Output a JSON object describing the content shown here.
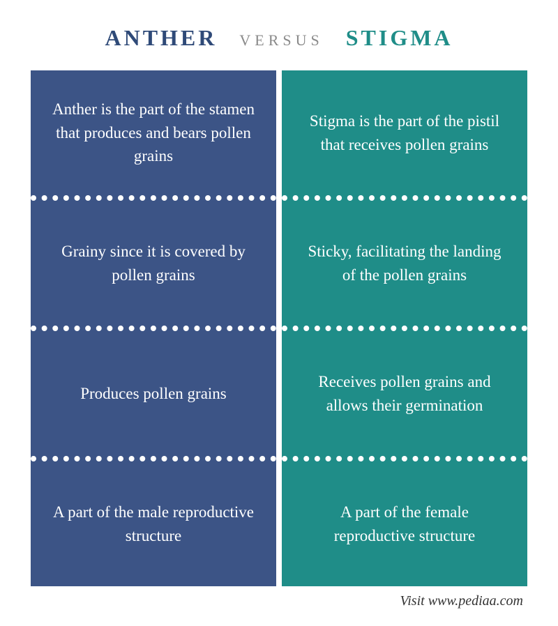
{
  "header": {
    "left_label": "ANTHER",
    "mid_label": "VERSUS",
    "right_label": "STIGMA",
    "left_color": "#2f4a78",
    "mid_color": "#8a8a8a",
    "right_color": "#1f8d88"
  },
  "columns": {
    "left": {
      "bg_color": "#3c5486",
      "cells": [
        "Anther is the part of the stamen that produces and bears pollen grains",
        "Grainy since it is covered by pollen grains",
        "Produces pollen grains",
        "A part of the male reproductive structure"
      ]
    },
    "right": {
      "bg_color": "#1f8d88",
      "cells": [
        "Stigma is the part of the pistil that receives pollen grains",
        "Sticky, facilitating the landing of the pollen grains",
        "Receives pollen grains and allows their germination",
        "A part of the female reproductive structure"
      ]
    }
  },
  "footer": {
    "text": "Visit www.pediaa.com"
  },
  "style": {
    "cell_font_size": 23,
    "cell_text_color": "#ffffff",
    "divider_color": "#ffffff",
    "divider_style": "dotted",
    "divider_width": 8,
    "header_font_size": 32,
    "versus_font_size": 22
  }
}
